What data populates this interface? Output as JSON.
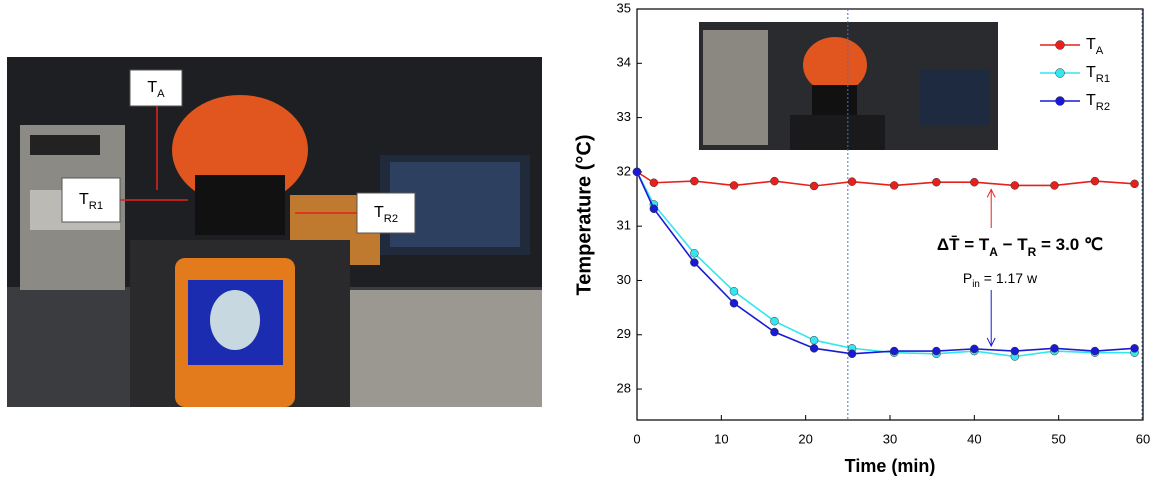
{
  "photo": {
    "labels": [
      "TA",
      "TR1",
      "TR2"
    ]
  },
  "chart_data": {
    "type": "line",
    "x_label": "Time (min)",
    "y_label": "Temperature (°C)",
    "x": [
      0,
      2,
      6.8,
      11.5,
      16.3,
      21,
      25.5,
      30.5,
      35.5,
      40,
      44.8,
      49.5,
      54.3,
      59
    ],
    "series": [
      {
        "name": "TA",
        "color": "#e8201c",
        "values": [
          32.0,
          31.8,
          31.83,
          31.75,
          31.83,
          31.74,
          31.82,
          31.75,
          31.81,
          31.81,
          31.75,
          31.75,
          31.83,
          31.78
        ]
      },
      {
        "name": "TR1",
        "color": "#34e6f0",
        "values": [
          32.0,
          31.4,
          30.5,
          29.8,
          29.25,
          28.9,
          28.75,
          28.67,
          28.65,
          28.7,
          28.6,
          28.7,
          28.67,
          28.67
        ]
      },
      {
        "name": "TR2",
        "color": "#1a1ad6",
        "values": [
          32.0,
          31.32,
          30.33,
          29.58,
          29.05,
          28.75,
          28.65,
          28.7,
          28.7,
          28.74,
          28.7,
          28.75,
          28.7,
          28.75
        ]
      }
    ],
    "annotations": [
      [
        "ΔT̄ = T",
        "A",
        " − T",
        "R",
        " = 3.0 ℃"
      ],
      [
        "P",
        "in",
        " = 1.17 w"
      ]
    ],
    "xlim": [
      0,
      60
    ],
    "xticks": [
      0,
      10,
      20,
      30,
      40,
      50,
      60
    ],
    "ylim": [
      27.43,
      35
    ],
    "yticks": [
      28,
      29,
      30,
      31,
      32,
      33,
      34,
      35
    ],
    "legend": "upper right"
  }
}
